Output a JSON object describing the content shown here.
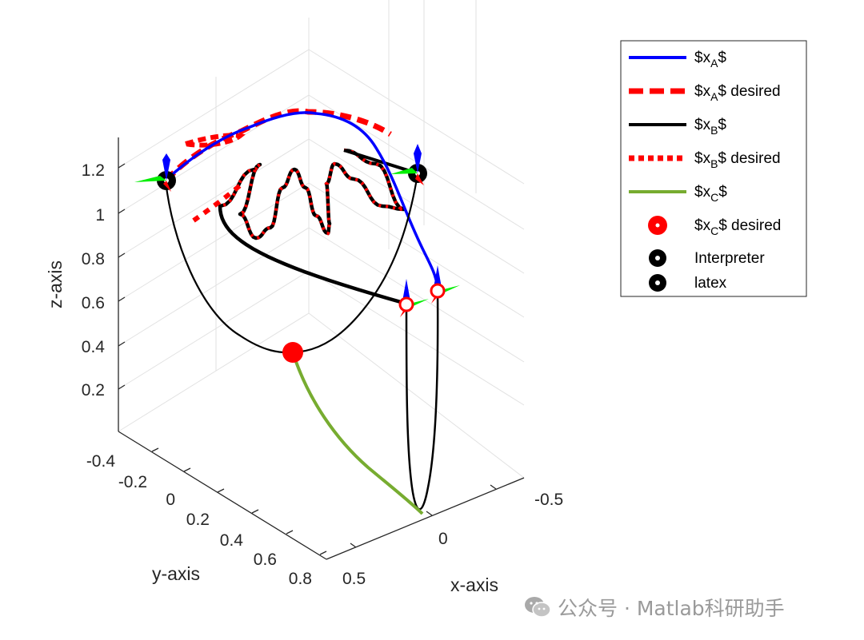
{
  "chart_data": {
    "type": "line3d",
    "title": "",
    "xlabel": "x-axis",
    "ylabel": "y-axis",
    "zlabel": "z-axis",
    "x_ticks": [
      "-0.5",
      "0",
      "0.5"
    ],
    "y_ticks": [
      "-0.4",
      "-0.2",
      "0",
      "0.2",
      "0.4",
      "0.6",
      "0.8"
    ],
    "z_ticks": [
      "0.2",
      "0.4",
      "0.6",
      "0.8",
      "1",
      "1.2"
    ],
    "grid": true,
    "legend_position": "top-right-outside",
    "series": [
      {
        "name": "$x_A$",
        "color": "#0000ff",
        "style": "solid"
      },
      {
        "name": "$x_A$ desired",
        "color": "#ff0000",
        "style": "dashed"
      },
      {
        "name": "$x_B$",
        "color": "#000000",
        "style": "solid"
      },
      {
        "name": "$x_B$ desired",
        "color": "#ff0000",
        "style": "dotted"
      },
      {
        "name": "$x_C$",
        "color": "#77ac30",
        "style": "solid"
      },
      {
        "name": "$x_C$ desired",
        "color": "#ff0000",
        "style": "marker"
      },
      {
        "name": "Interpreter",
        "color": "#000000",
        "style": "marker"
      },
      {
        "name": "latex",
        "color": "#000000",
        "style": "marker"
      }
    ]
  },
  "watermark": {
    "text": "公众号 · Matlab科研助手",
    "icon": "wechat-icon"
  }
}
